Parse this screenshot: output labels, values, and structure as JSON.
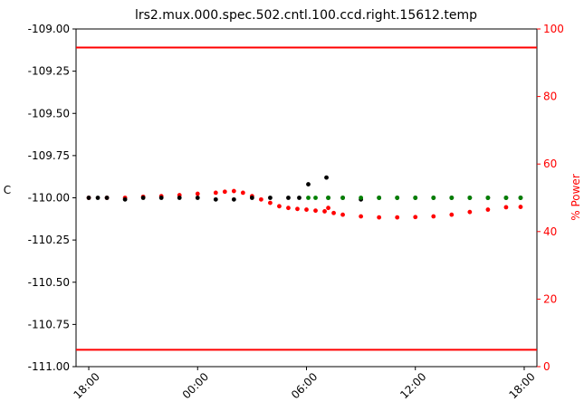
{
  "chart_data": {
    "type": "scatter",
    "title": "lrs2.mux.000.spec.502.cntl.100.ccd.right.15612.temp",
    "ylabel": "C",
    "ylabel_right": "% Power",
    "ylim": [
      -111.0,
      -109.0
    ],
    "ylim_right": [
      0,
      100
    ],
    "y_ticks": [
      "-109.00",
      "-109.25",
      "-109.50",
      "-109.75",
      "-110.00",
      "-110.25",
      "-110.50",
      "-110.75",
      "-111.00"
    ],
    "y_tick_values": [
      -109.0,
      -109.25,
      -109.5,
      -109.75,
      -110.0,
      -110.25,
      -110.5,
      -110.75,
      -111.0
    ],
    "y_right_ticks": [
      "100",
      "80",
      "60",
      "40",
      "20",
      "0"
    ],
    "y_right_tick_values": [
      100,
      80,
      60,
      40,
      20,
      0
    ],
    "x_range_hours": [
      17.9,
      18.1
    ],
    "x_ticks": [
      "18:00",
      "00:00",
      "06:00",
      "12:00",
      "18:00"
    ],
    "x_tick_values": [
      18,
      24,
      30,
      36,
      42
    ],
    "hlines": [
      {
        "y": -109.11,
        "color": "#ff0000"
      },
      {
        "y": -110.9,
        "color": "#ff0000"
      }
    ],
    "series": [
      {
        "color": "#000000",
        "axis": "left",
        "x": [
          18.0,
          18.5,
          19.0,
          20.0,
          21.0,
          22.0,
          23.0,
          24.0,
          25.0,
          26.0,
          27.0,
          28.0,
          29.0,
          29.6,
          30.1,
          31.1,
          31.2,
          32.0,
          33.0,
          34.0,
          35.0,
          36.0,
          37.0,
          38.0,
          39.0,
          40.0,
          41.0,
          41.8
        ],
        "y": [
          -110.0,
          -110.0,
          -110.0,
          -110.01,
          -110.0,
          -110.0,
          -110.0,
          -110.0,
          -110.01,
          -110.01,
          -110.0,
          -110.0,
          -110.0,
          -110.0,
          -109.92,
          -109.88,
          -110.0,
          -110.0,
          -110.01,
          -110.0,
          -110.0,
          -110.0,
          -110.0,
          -110.0,
          -110.0,
          -110.0,
          -110.0,
          -110.0
        ]
      },
      {
        "color": "#008000",
        "axis": "left",
        "x": [
          30.1,
          30.5,
          31.2,
          32.0,
          33.0,
          34.0,
          35.0,
          36.0,
          37.0,
          38.0,
          39.0,
          40.0,
          41.0,
          41.8
        ],
        "y": [
          -110.0,
          -110.0,
          -110.0,
          -110.0,
          -110.0,
          -110.0,
          -110.0,
          -110.0,
          -110.0,
          -110.0,
          -110.0,
          -110.0,
          -110.0,
          -110.0
        ]
      },
      {
        "color": "#ff0000",
        "axis": "right",
        "x": [
          18.0,
          19.0,
          20.0,
          21.0,
          22.0,
          23.0,
          24.0,
          25.0,
          25.5,
          26.0,
          26.5,
          27.0,
          27.5,
          28.0,
          28.5,
          29.0,
          29.5,
          30.0,
          30.5,
          31.0,
          31.2,
          31.5,
          32.0,
          33.0,
          34.0,
          35.0,
          36.0,
          37.0,
          38.0,
          39.0,
          40.0,
          41.0,
          41.8
        ],
        "y": [
          50.0,
          50.0,
          50.0,
          50.3,
          50.5,
          50.8,
          51.2,
          51.5,
          51.8,
          52.0,
          51.5,
          50.5,
          49.5,
          48.5,
          47.5,
          47.0,
          46.7,
          46.5,
          46.2,
          46.0,
          47.0,
          45.5,
          45.0,
          44.5,
          44.2,
          44.2,
          44.3,
          44.5,
          45.0,
          45.8,
          46.5,
          47.2,
          47.3
        ]
      }
    ]
  }
}
